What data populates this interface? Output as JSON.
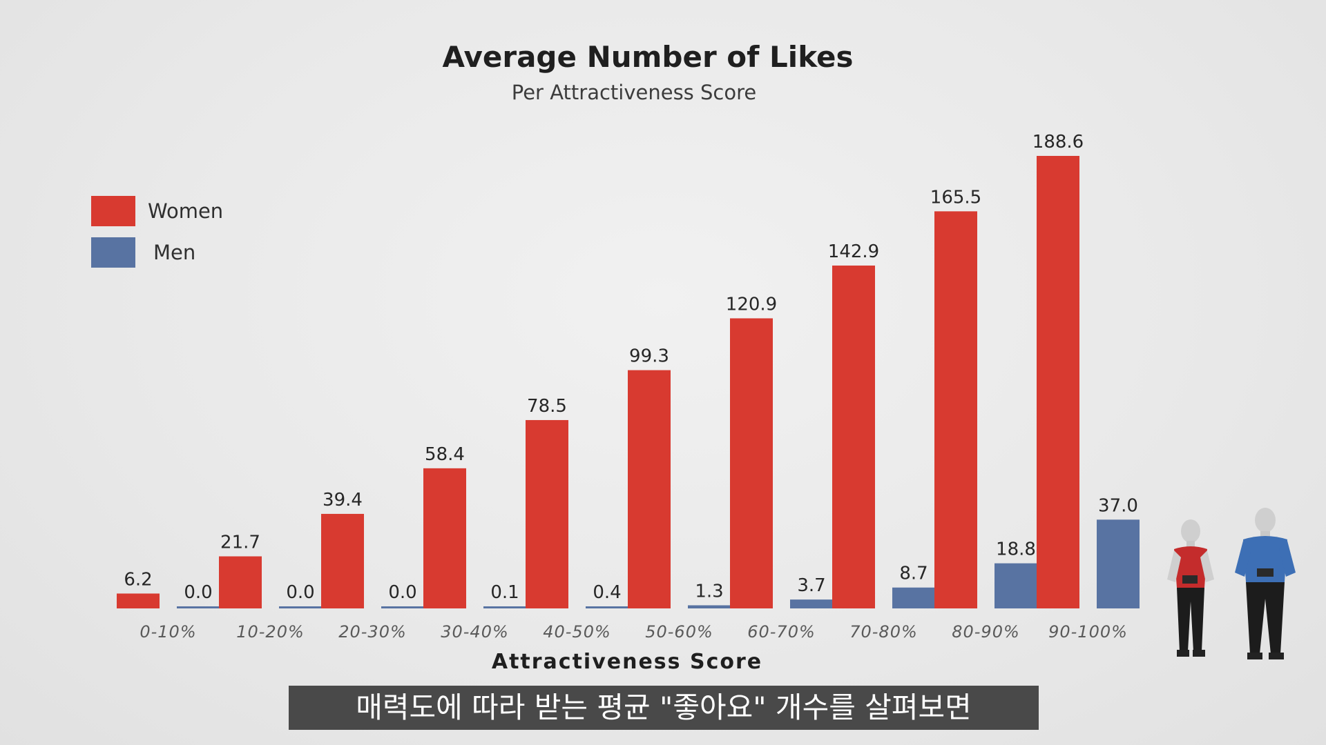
{
  "subtitle_caption": "매력도에 따라 받는 평균 \"좋아요\" 개수를 살펴보면",
  "colors": {
    "women": "#d83a30",
    "men": "#5873a2"
  },
  "chart_data": {
    "type": "bar",
    "title": "Average Number of Likes",
    "subtitle": "Per Attractiveness Score",
    "xlabel": "Attractiveness Score",
    "ylabel": "",
    "grid": false,
    "legend_position": "top-left",
    "categories": [
      "0-10%",
      "10-20%",
      "20-30%",
      "30-40%",
      "40-50%",
      "50-60%",
      "60-70%",
      "70-80%",
      "80-90%",
      "90-100%"
    ],
    "series": [
      {
        "name": "Women",
        "values": [
          6.2,
          21.7,
          39.4,
          58.4,
          78.5,
          99.3,
          120.9,
          142.9,
          165.5,
          188.6
        ],
        "labels": [
          "6.2",
          "21.7",
          "39.4",
          "58.4",
          "78.5",
          "99.3",
          "120.9",
          "142.9",
          "165.5",
          "188.6"
        ]
      },
      {
        "name": "Men",
        "values": [
          0.0,
          0.0,
          0.0,
          0.1,
          0.4,
          1.3,
          3.7,
          8.7,
          18.8,
          37.0
        ],
        "labels": [
          "0.0",
          "0.0",
          "0.0",
          "0.1",
          "0.4",
          "1.3",
          "3.7",
          "8.7",
          "18.8",
          "37.0"
        ]
      }
    ]
  }
}
